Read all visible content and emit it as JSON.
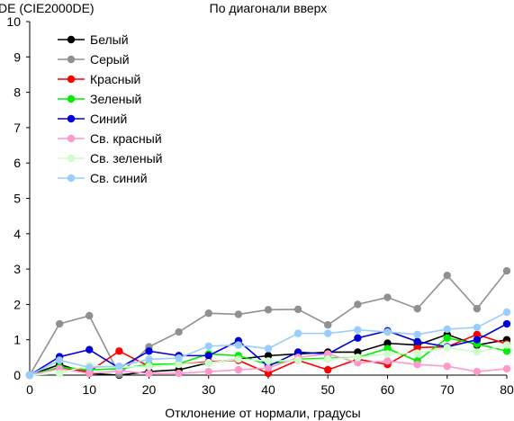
{
  "chart_data": {
    "type": "line",
    "title": "По диагонали вверх",
    "ylabel": "DE (CIE2000DE)",
    "xlabel": "Отклонение от нормали, градусы",
    "xlim": [
      0,
      80
    ],
    "ylim": [
      0,
      10
    ],
    "xticks": [
      "0",
      "10",
      "20",
      "30",
      "40",
      "50",
      "60",
      "70",
      "80"
    ],
    "yticks": [
      "0",
      "1",
      "2",
      "3",
      "4",
      "5",
      "6",
      "7",
      "8",
      "9",
      "10"
    ],
    "grid": false,
    "legend_position": "top-left",
    "x": [
      0,
      5,
      10,
      15,
      20,
      25,
      30,
      35,
      40,
      45,
      50,
      55,
      60,
      65,
      70,
      75,
      80
    ],
    "series": [
      {
        "name": "Белый",
        "color": "#000000",
        "values": [
          0.0,
          0.3,
          0.05,
          0.0,
          0.1,
          0.15,
          0.35,
          0.45,
          0.55,
          0.6,
          0.65,
          0.65,
          0.9,
          0.85,
          1.15,
          0.85,
          1.0
        ]
      },
      {
        "name": "Серый",
        "color": "#909090",
        "values": [
          0.0,
          1.45,
          1.68,
          0.02,
          0.8,
          1.22,
          1.75,
          1.72,
          1.85,
          1.86,
          1.42,
          2.0,
          2.2,
          1.88,
          2.82,
          1.88,
          2.95
        ]
      },
      {
        "name": "Красный",
        "color": "#ff0000",
        "values": [
          0.0,
          0.2,
          0.1,
          0.68,
          0.25,
          0.3,
          0.38,
          0.42,
          0.05,
          0.42,
          0.15,
          0.45,
          0.3,
          0.78,
          0.8,
          1.15,
          0.88
        ]
      },
      {
        "name": "Зеленый",
        "color": "#00ee00",
        "values": [
          0.0,
          0.22,
          0.15,
          0.18,
          0.3,
          0.32,
          0.6,
          0.55,
          0.3,
          0.45,
          0.48,
          0.5,
          0.75,
          0.4,
          1.05,
          0.88,
          0.68
        ]
      },
      {
        "name": "Синий",
        "color": "#0000dd",
        "values": [
          0.0,
          0.52,
          0.72,
          0.2,
          0.68,
          0.55,
          0.55,
          0.97,
          0.25,
          0.65,
          0.6,
          1.05,
          1.25,
          0.95,
          0.8,
          1.0,
          1.45
        ]
      },
      {
        "name": "Св. красный",
        "color": "#ff99cc",
        "values": [
          0.0,
          0.18,
          0.05,
          0.12,
          0.05,
          0.05,
          0.1,
          0.15,
          0.2,
          0.5,
          0.6,
          0.35,
          0.4,
          0.3,
          0.25,
          0.1,
          0.18
        ]
      },
      {
        "name": "Св. зеленый",
        "color": "#ccffcc",
        "values": [
          0.0,
          0.05,
          0.28,
          0.22,
          0.25,
          0.3,
          0.35,
          0.45,
          0.4,
          0.42,
          0.45,
          0.5,
          0.6,
          0.62,
          0.78,
          0.65,
          0.85
        ]
      },
      {
        "name": "Св. синий",
        "color": "#99ccff",
        "values": [
          0.0,
          0.42,
          0.22,
          0.25,
          0.45,
          0.48,
          0.82,
          0.85,
          0.75,
          1.18,
          1.18,
          1.28,
          1.22,
          1.15,
          1.3,
          1.35,
          1.78
        ]
      }
    ]
  }
}
